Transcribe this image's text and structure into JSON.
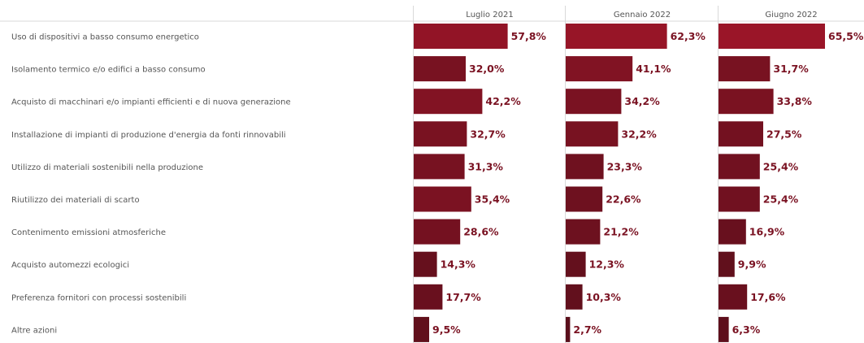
{
  "chart_data": {
    "type": "bar",
    "orientation": "horizontal",
    "categories": [
      "Uso di dispositivi a basso consumo energetico",
      "Isolamento termico e/o edifici a basso consumo",
      "Acquisto di macchinari e/o impianti efficienti e di nuova generazione",
      "Installazione di impianti di produzione d'energia da fonti rinnovabili",
      "Utilizzo di materiali sostenibili nella produzione",
      "Riutilizzo dei materiali di scarto",
      "Contenimento emissioni atmosferiche",
      "Acquisto automezzi ecologici",
      "Preferenza fornitori con processi sostenibili",
      "Altre azioni"
    ],
    "series": [
      {
        "name": "Luglio 2021",
        "values": [
          57.8,
          32.0,
          42.2,
          32.7,
          31.3,
          35.4,
          28.6,
          14.3,
          17.7,
          9.5
        ],
        "labels": [
          "57,8%",
          "32,0%",
          "42,2%",
          "32,7%",
          "31,3%",
          "35,4%",
          "28,6%",
          "14,3%",
          "17,7%",
          "9,5%"
        ]
      },
      {
        "name": "Gennaio 2022",
        "values": [
          62.3,
          41.1,
          34.2,
          32.2,
          23.3,
          22.6,
          21.2,
          12.3,
          10.3,
          2.7
        ],
        "labels": [
          "62,3%",
          "41,1%",
          "34,2%",
          "32,2%",
          "23,3%",
          "22,6%",
          "21,2%",
          "12,3%",
          "10,3%",
          "2,7%"
        ]
      },
      {
        "name": "Giugno 2022",
        "values": [
          65.5,
          31.7,
          33.8,
          27.5,
          25.4,
          25.4,
          16.9,
          9.9,
          17.6,
          6.3
        ],
        "labels": [
          "65,5%",
          "31,7%",
          "33,8%",
          "27,5%",
          "25,4%",
          "25,4%",
          "16,9%",
          "9,9%",
          "17,6%",
          "6,3%"
        ]
      }
    ],
    "color_scale": {
      "low": "#5a0f1b",
      "high": "#9a1528"
    },
    "label_color": "#7a1222",
    "grid": false
  }
}
